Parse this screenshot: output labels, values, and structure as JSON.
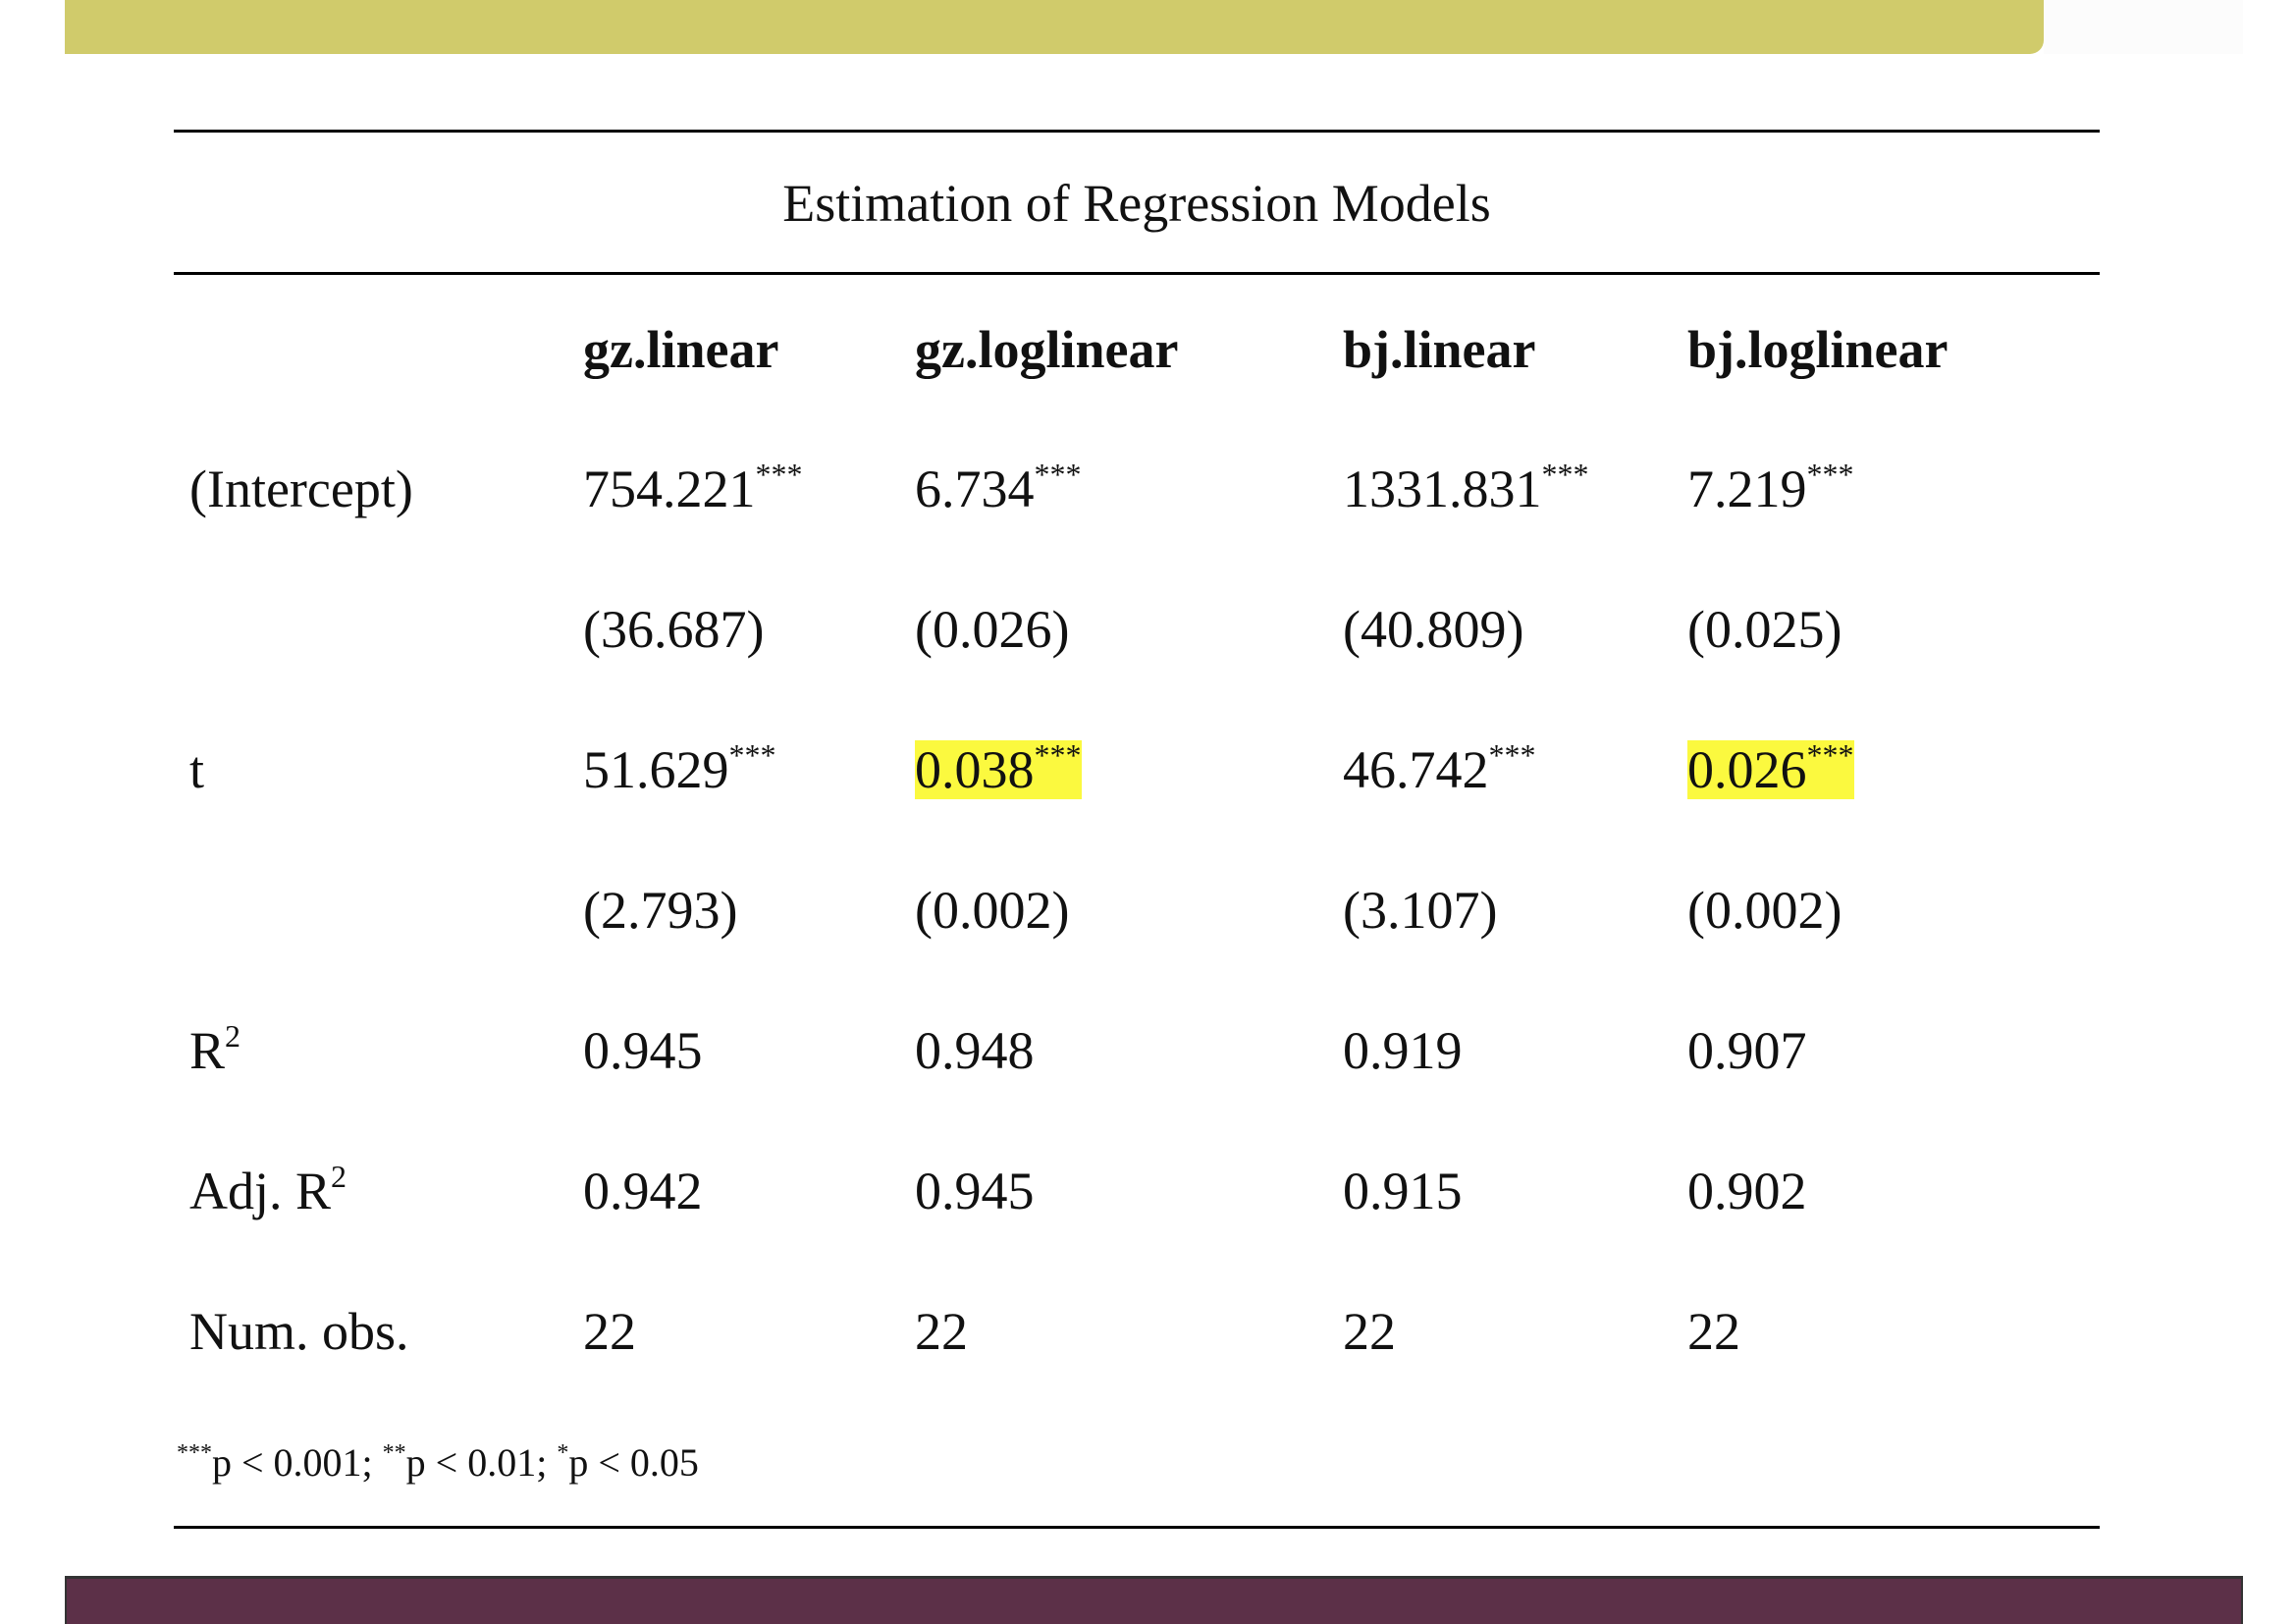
{
  "colors": {
    "top_bar": "#d0cb6b",
    "bottom_bar": "#5c3048",
    "highlight": "#fbf93f"
  },
  "table": {
    "title": "Estimation of Regression Models",
    "columns": [
      "gz.linear",
      "gz.loglinear",
      "bj.linear",
      "bj.loglinear"
    ],
    "rows": [
      {
        "label": "(Intercept)",
        "cells": [
          {
            "v": "754.221",
            "s": "***"
          },
          {
            "v": "6.734",
            "s": "***"
          },
          {
            "v": "1331.831",
            "s": "***"
          },
          {
            "v": "7.219",
            "s": "***"
          }
        ]
      },
      {
        "label": "",
        "cells": [
          {
            "v": "(36.687)",
            "s": ""
          },
          {
            "v": "(0.026)",
            "s": ""
          },
          {
            "v": "(40.809)",
            "s": ""
          },
          {
            "v": "(0.025)",
            "s": ""
          }
        ]
      },
      {
        "label": "t",
        "cells": [
          {
            "v": "51.629",
            "s": "***"
          },
          {
            "v": "0.038",
            "s": "***",
            "hl": true
          },
          {
            "v": "46.742",
            "s": "***"
          },
          {
            "v": "0.026",
            "s": "***",
            "hl": true
          }
        ]
      },
      {
        "label": "",
        "cells": [
          {
            "v": "(2.793)",
            "s": ""
          },
          {
            "v": "(0.002)",
            "s": ""
          },
          {
            "v": "(3.107)",
            "s": ""
          },
          {
            "v": "(0.002)",
            "s": ""
          }
        ]
      },
      {
        "label": "R",
        "label_sup": "2",
        "cells": [
          {
            "v": "0.945",
            "s": ""
          },
          {
            "v": "0.948",
            "s": ""
          },
          {
            "v": "0.919",
            "s": ""
          },
          {
            "v": "0.907",
            "s": ""
          }
        ]
      },
      {
        "label": "Adj. R",
        "label_sup": "2",
        "cells": [
          {
            "v": "0.942",
            "s": ""
          },
          {
            "v": "0.945",
            "s": ""
          },
          {
            "v": "0.915",
            "s": ""
          },
          {
            "v": "0.902",
            "s": ""
          }
        ]
      },
      {
        "label": "Num. obs.",
        "cells": [
          {
            "v": "22",
            "s": ""
          },
          {
            "v": "22",
            "s": ""
          },
          {
            "v": "22",
            "s": ""
          },
          {
            "v": "22",
            "s": ""
          }
        ]
      }
    ],
    "footnote": [
      {
        "s": "***",
        "t": "p < 0.001; "
      },
      {
        "s": "**",
        "t": "p < 0.01; "
      },
      {
        "s": "*",
        "t": "p < 0.05"
      }
    ]
  }
}
